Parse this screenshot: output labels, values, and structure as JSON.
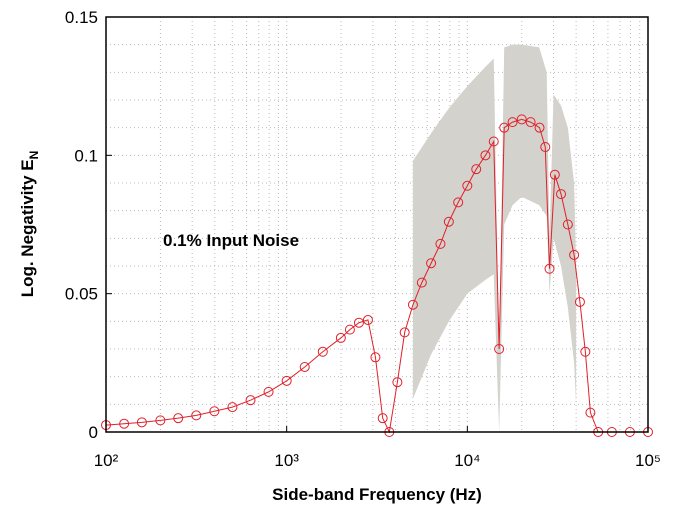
{
  "chart_data": {
    "type": "line",
    "xlabel": "Side-band Frequency (Hz)",
    "ylabel": "Log. Negativity E",
    "ylabel_sub": "N",
    "annotation": "0.1% Input Noise",
    "xscale": "log",
    "grid": true,
    "xlim": [
      100,
      100000
    ],
    "ylim": [
      0,
      0.15
    ],
    "xticks": [
      {
        "value": 100,
        "label": "10²"
      },
      {
        "value": 1000,
        "label": "10³"
      },
      {
        "value": 10000,
        "label": "10⁴"
      },
      {
        "value": 100000,
        "label": "10⁵"
      }
    ],
    "yticks": [
      0,
      0.05,
      0.1,
      0.15
    ],
    "series": [
      {
        "color": "#e0202a",
        "x": [
          100,
          126,
          158,
          200,
          251,
          316,
          398,
          501,
          631,
          794,
          1000,
          1259,
          1585,
          1995,
          2239,
          2512,
          2818,
          3100,
          3400,
          3700,
          4100,
          4500,
          5000,
          5600,
          6300,
          7100,
          7900,
          8900,
          10000,
          11200,
          12600,
          14000,
          15000,
          16000,
          17800,
          20000,
          22400,
          25100,
          27000,
          28500,
          30500,
          33000,
          36000,
          39000,
          42000,
          45000,
          48000,
          53000,
          63100,
          79400,
          100000
        ],
        "values": [
          0.0025,
          0.003,
          0.0035,
          0.0042,
          0.005,
          0.006,
          0.0075,
          0.009,
          0.0115,
          0.0145,
          0.0185,
          0.0235,
          0.029,
          0.034,
          0.037,
          0.0395,
          0.0405,
          0.027,
          0.005,
          0,
          0.018,
          0.036,
          0.046,
          0.054,
          0.061,
          0.068,
          0.076,
          0.083,
          0.089,
          0.095,
          0.1,
          0.105,
          0.03,
          0.11,
          0.112,
          0.113,
          0.112,
          0.11,
          0.103,
          0.059,
          0.093,
          0.086,
          0.075,
          0.064,
          0.047,
          0.029,
          0.007,
          0,
          0,
          0,
          0
        ]
      }
    ],
    "band": {
      "color": "#d4d2cc",
      "x": [
        5000,
        6300,
        7900,
        10000,
        12600,
        14000,
        15000,
        16000,
        17800,
        20000,
        25000,
        27500,
        28500,
        30000,
        33000,
        36000,
        39000,
        40000
      ],
      "upper": [
        0.098,
        0.108,
        0.117,
        0.125,
        0.132,
        0.135,
        0.03,
        0.139,
        0.14,
        0.14,
        0.139,
        0.13,
        0.07,
        0.122,
        0.118,
        0.11,
        0.09,
        0.06
      ],
      "lower": [
        0.012,
        0.028,
        0.04,
        0.05,
        0.055,
        0.057,
        0,
        0.075,
        0.082,
        0.085,
        0.082,
        0.078,
        0.05,
        0.07,
        0.06,
        0.045,
        0.025,
        0.01
      ]
    }
  }
}
